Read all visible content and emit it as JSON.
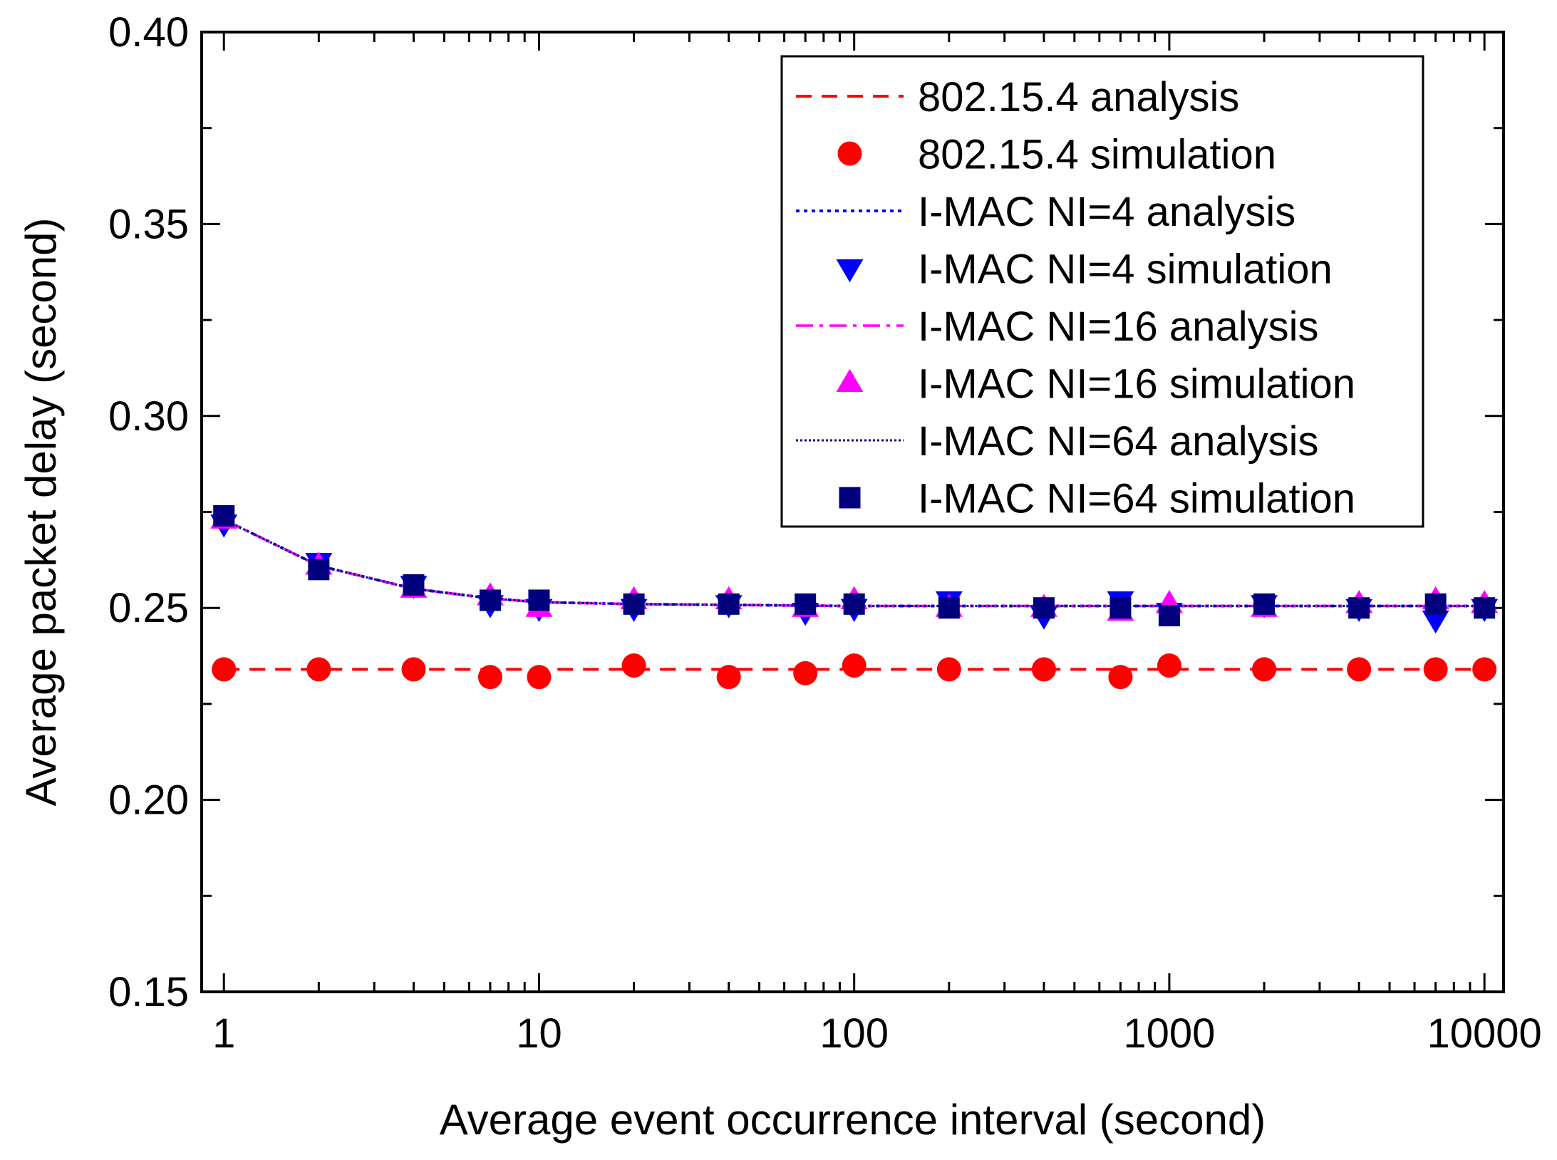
{
  "chart_data": {
    "type": "line",
    "title": "",
    "xlabel": "Average event occurrence interval (second)",
    "ylabel": "Average packet delay (second)",
    "x_scale": "log",
    "xlim": [
      0.85,
      11500
    ],
    "ylim": [
      0.15,
      0.4
    ],
    "x_ticks": [
      1,
      10,
      100,
      1000,
      10000
    ],
    "x_tick_labels": [
      "1",
      "10",
      "100",
      "1000",
      "10000"
    ],
    "y_ticks": [
      0.15,
      0.2,
      0.25,
      0.3,
      0.35,
      0.4
    ],
    "y_tick_labels": [
      "0.15",
      "0.20",
      "0.25",
      "0.30",
      "0.35",
      "0.40"
    ],
    "grid": false,
    "legend_position": "top-right",
    "series": [
      {
        "name": "802.15.4 analysis",
        "kind": "line",
        "style": "dash",
        "color": "#ff0000",
        "x": [
          1,
          10000
        ],
        "y": [
          0.234,
          0.234
        ]
      },
      {
        "name": "802.15.4 simulation",
        "kind": "marker",
        "marker": "circle",
        "color": "#ff0000",
        "x": [
          1,
          2,
          4,
          7,
          10,
          20,
          40,
          70,
          100,
          200,
          400,
          700,
          1000,
          2000,
          4000,
          7000,
          10000
        ],
        "y": [
          0.234,
          0.234,
          0.234,
          0.232,
          0.232,
          0.235,
          0.232,
          0.233,
          0.235,
          0.234,
          0.234,
          0.232,
          0.235,
          0.234,
          0.234,
          0.234,
          0.234
        ]
      },
      {
        "name": "I-MAC NI=4 analysis",
        "kind": "line",
        "style": "dot",
        "color": "#0000ff",
        "x": [
          1,
          2,
          4,
          7,
          10,
          20,
          40,
          70,
          100,
          200,
          400,
          700,
          1000,
          2000,
          4000,
          7000,
          10000
        ],
        "y": [
          0.273,
          0.261,
          0.255,
          0.2525,
          0.2515,
          0.251,
          0.2508,
          0.2506,
          0.2505,
          0.2505,
          0.2505,
          0.2505,
          0.2505,
          0.2505,
          0.2505,
          0.2505,
          0.2505
        ]
      },
      {
        "name": "I-MAC NI=4 simulation",
        "kind": "marker",
        "marker": "triangle-down",
        "color": "#0000ff",
        "x": [
          1,
          2,
          4,
          7,
          10,
          20,
          40,
          70,
          100,
          200,
          400,
          700,
          1000,
          2000,
          4000,
          7000,
          10000
        ],
        "y": [
          0.272,
          0.262,
          0.256,
          0.251,
          0.25,
          0.25,
          0.251,
          0.249,
          0.25,
          0.252,
          0.248,
          0.252,
          0.249,
          0.251,
          0.25,
          0.247,
          0.25
        ]
      },
      {
        "name": "I-MAC NI=16 analysis",
        "kind": "line",
        "style": "dashdot",
        "color": "#ff00ff",
        "x": [
          1,
          2,
          4,
          7,
          10,
          20,
          40,
          70,
          100,
          200,
          400,
          700,
          1000,
          2000,
          4000,
          7000,
          10000
        ],
        "y": [
          0.273,
          0.261,
          0.255,
          0.2525,
          0.2515,
          0.251,
          0.2508,
          0.2506,
          0.2505,
          0.2505,
          0.2505,
          0.2505,
          0.2505,
          0.2505,
          0.2505,
          0.2505,
          0.2505
        ]
      },
      {
        "name": "I-MAC NI=16 simulation",
        "kind": "marker",
        "marker": "triangle-up",
        "color": "#ff00ff",
        "x": [
          1,
          2,
          4,
          7,
          10,
          20,
          40,
          70,
          100,
          200,
          400,
          700,
          1000,
          2000,
          4000,
          7000,
          10000
        ],
        "y": [
          0.273,
          0.261,
          0.255,
          0.253,
          0.25,
          0.252,
          0.252,
          0.25,
          0.252,
          0.25,
          0.25,
          0.249,
          0.251,
          0.25,
          0.251,
          0.252,
          0.251
        ]
      },
      {
        "name": "I-MAC NI=64 analysis",
        "kind": "line",
        "style": "densedot",
        "color": "#00007f",
        "x": [
          1,
          2,
          4,
          7,
          10,
          20,
          40,
          70,
          100,
          200,
          400,
          700,
          1000,
          2000,
          4000,
          7000,
          10000
        ],
        "y": [
          0.273,
          0.261,
          0.255,
          0.2525,
          0.2515,
          0.251,
          0.2508,
          0.2506,
          0.2505,
          0.2505,
          0.2505,
          0.2505,
          0.2505,
          0.2505,
          0.2505,
          0.2505,
          0.2505
        ]
      },
      {
        "name": "I-MAC NI=64 simulation",
        "kind": "marker",
        "marker": "square",
        "color": "#00007f",
        "x": [
          1,
          2,
          4,
          7,
          10,
          20,
          40,
          70,
          100,
          200,
          400,
          700,
          1000,
          2000,
          4000,
          7000,
          10000
        ],
        "y": [
          0.274,
          0.26,
          0.256,
          0.252,
          0.252,
          0.251,
          0.251,
          0.251,
          0.251,
          0.25,
          0.25,
          0.25,
          0.248,
          0.251,
          0.25,
          0.251,
          0.25
        ]
      }
    ]
  }
}
